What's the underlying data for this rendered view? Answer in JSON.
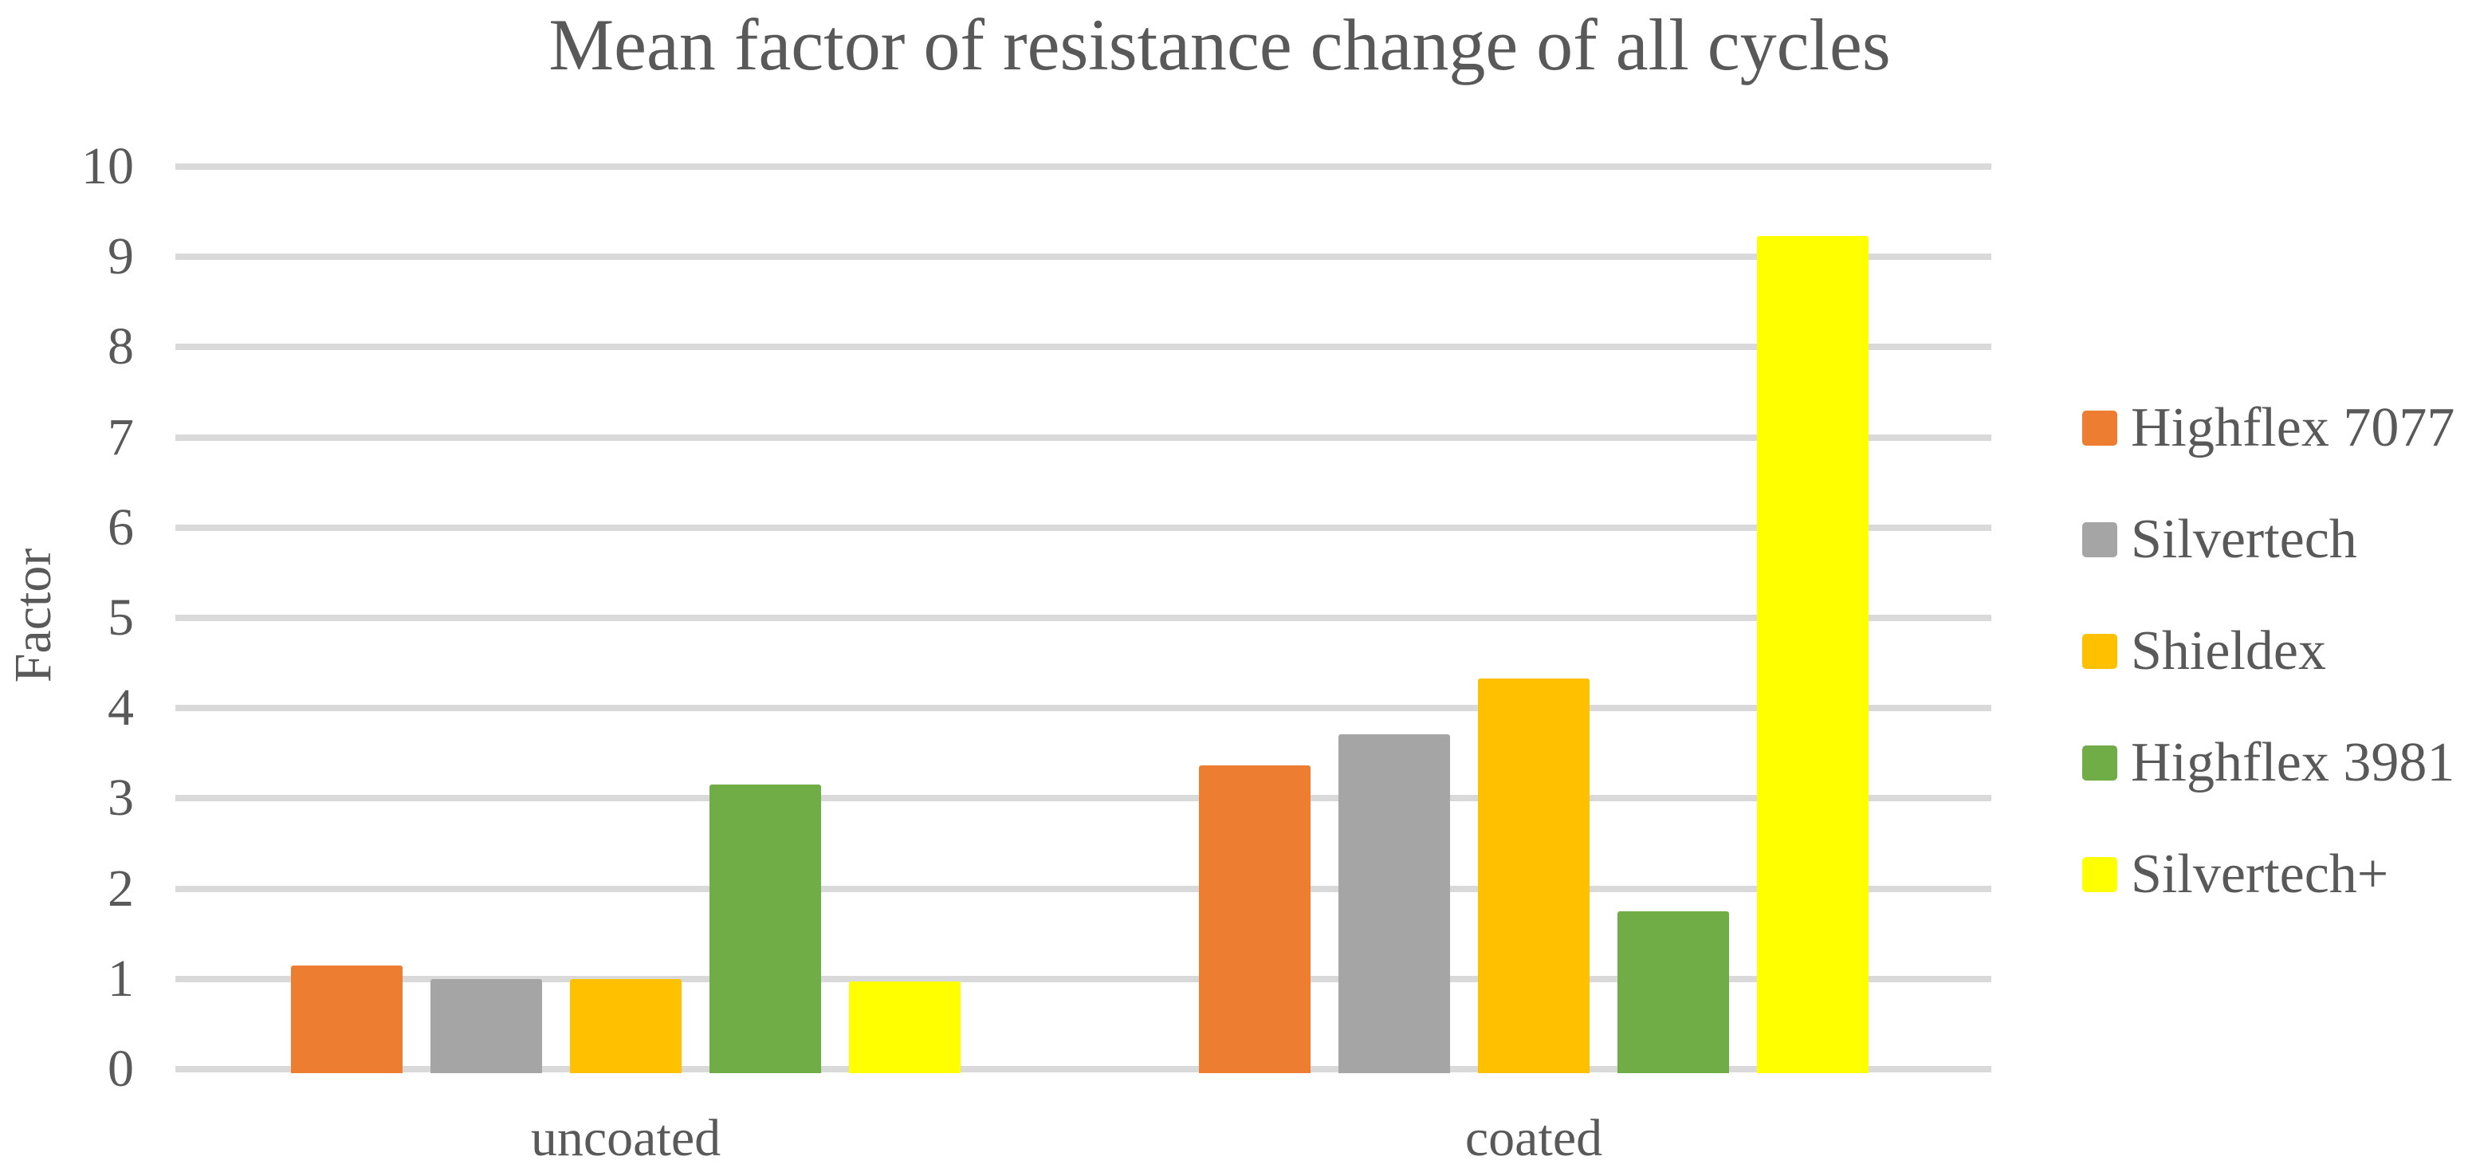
{
  "title": "Mean factor of resistance change of all cycles",
  "chart_data": {
    "type": "bar",
    "title": "Mean factor of resistance change of all cycles",
    "xlabel": "",
    "ylabel": "Factor",
    "ylim": [
      0,
      10
    ],
    "ytick_step": 1,
    "yticks": [
      "0",
      "1",
      "2",
      "3",
      "4",
      "5",
      "6",
      "7",
      "8",
      "9",
      "10"
    ],
    "grid": true,
    "legend_position": "right",
    "categories": [
      "uncoated",
      "coated"
    ],
    "series": [
      {
        "name": "Highflex 7077",
        "color": "#ED7D31",
        "values": [
          1.15,
          3.37
        ]
      },
      {
        "name": "Silvertech",
        "color": "#A5A5A5",
        "values": [
          1.0,
          3.71
        ]
      },
      {
        "name": "Shieldex",
        "color": "#FFC000",
        "values": [
          1.0,
          4.33
        ]
      },
      {
        "name": "Highflex 3981",
        "color": "#70AD47",
        "values": [
          3.15,
          1.75
        ]
      },
      {
        "name": "Silvertech+",
        "color": "#FFFF00",
        "values": [
          0.97,
          9.23
        ]
      }
    ]
  },
  "colors": {
    "text": "#595959",
    "gridline": "#D9D9D9",
    "background": "#FFFFFF"
  }
}
